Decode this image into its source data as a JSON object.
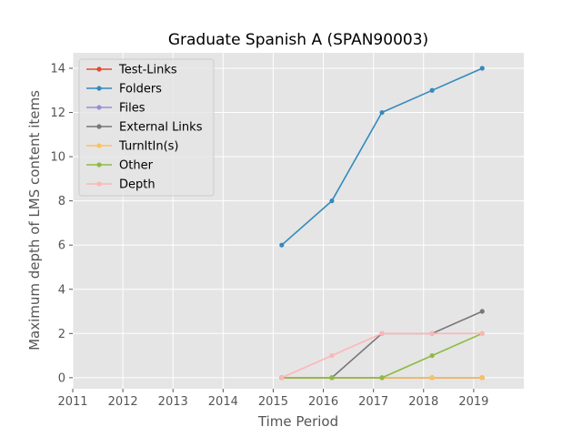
{
  "chart_data": {
    "type": "line",
    "title": "Graduate Spanish A (SPAN90003)",
    "xlabel": "Time Period",
    "ylabel": "Maximum depth of LMS content items",
    "xlim": [
      2011,
      2020
    ],
    "ylim": [
      -0.5,
      14.7
    ],
    "xticks": [
      "2011",
      "2012",
      "2013",
      "2014",
      "2015",
      "2016",
      "2017",
      "2018",
      "2019"
    ],
    "xtick_values": [
      2011,
      2012,
      2013,
      2014,
      2015,
      2016,
      2017,
      2018,
      2019
    ],
    "yticks": [
      "0",
      "2",
      "4",
      "6",
      "8",
      "10",
      "12",
      "14"
    ],
    "ytick_values": [
      0,
      2,
      4,
      6,
      8,
      10,
      12,
      14
    ],
    "grid": true,
    "legend_position": "top-left",
    "x": [
      2015.17,
      2016.17,
      2017.17,
      2018.17,
      2019.17
    ],
    "series": [
      {
        "name": "Test-Links",
        "color": "#E24A33",
        "values": [
          0,
          0,
          0,
          0,
          0
        ]
      },
      {
        "name": "Folders",
        "color": "#348ABD",
        "values": [
          6,
          8,
          12,
          13,
          14
        ]
      },
      {
        "name": "Files",
        "color": "#988ED5",
        "values": [
          0,
          0,
          0,
          0,
          0
        ]
      },
      {
        "name": "External Links",
        "color": "#777777",
        "values": [
          0,
          0,
          2,
          2,
          3
        ]
      },
      {
        "name": "TurnItIn(s)",
        "color": "#FBC15E",
        "values": [
          0,
          0,
          0,
          0,
          0
        ]
      },
      {
        "name": "Other",
        "color": "#8EBA42",
        "values": [
          0,
          0,
          0,
          1,
          2
        ]
      },
      {
        "name": "Depth",
        "color": "#FFB5B8",
        "values": [
          0,
          1,
          2,
          2,
          2
        ]
      }
    ]
  }
}
